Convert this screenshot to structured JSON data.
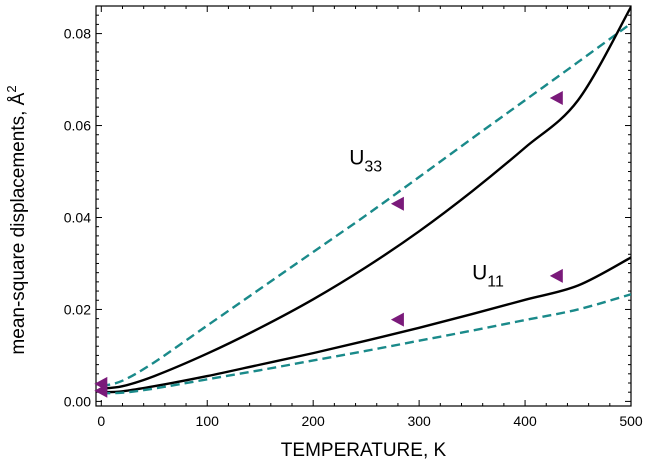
{
  "chart_data": {
    "type": "line",
    "title": "",
    "xlabel": "TEMPERATURE, K",
    "ylabel_text": "mean-square displacements, ",
    "ylabel_unit_base": "Å",
    "ylabel_unit_sup": "2",
    "xlim": [
      -5,
      500
    ],
    "ylim": [
      -0.001,
      0.086
    ],
    "xticks": [
      0,
      100,
      200,
      300,
      400,
      500
    ],
    "xtick_labels": [
      "0",
      "100",
      "200",
      "300",
      "400",
      "500"
    ],
    "yticks": [
      0.0,
      0.02,
      0.04,
      0.06,
      0.08
    ],
    "ytick_labels": [
      "0.00",
      "0.02",
      "0.04",
      "0.06",
      "0.08"
    ],
    "grid": false,
    "legend": "none",
    "series": [
      {
        "style": "dashed",
        "color": "#1a8a8a",
        "x": [
          0,
          20,
          50,
          100,
          150,
          200,
          250,
          300,
          350,
          400,
          450,
          500
        ],
        "y": [
          0.0033,
          0.0045,
          0.0085,
          0.0165,
          0.0245,
          0.0325,
          0.0405,
          0.0488,
          0.0572,
          0.0655,
          0.0738,
          0.0822
        ]
      },
      {
        "style": "solid",
        "color": "#000000",
        "x": [
          0,
          20,
          50,
          100,
          150,
          200,
          250,
          300,
          350,
          400,
          450,
          500
        ],
        "y": [
          0.0028,
          0.0033,
          0.0055,
          0.0104,
          0.016,
          0.0222,
          0.0292,
          0.037,
          0.0457,
          0.0552,
          0.0655,
          0.0858
        ]
      },
      {
        "style": "solid",
        "color": "#000000",
        "x": [
          0,
          20,
          50,
          100,
          150,
          200,
          250,
          300,
          350,
          400,
          450,
          500
        ],
        "y": [
          0.002,
          0.0022,
          0.0033,
          0.0055,
          0.008,
          0.0105,
          0.0132,
          0.016,
          0.019,
          0.0221,
          0.0252,
          0.0313
        ]
      },
      {
        "style": "dashed",
        "color": "#1a8a8a",
        "x": [
          0,
          20,
          50,
          100,
          150,
          200,
          250,
          300,
          350,
          400,
          450,
          500
        ],
        "y": [
          0.0018,
          0.0019,
          0.0028,
          0.0048,
          0.0068,
          0.0089,
          0.011,
          0.0132,
          0.0154,
          0.0177,
          0.02,
          0.0233
        ]
      }
    ],
    "markers": {
      "shape": "left-triangle",
      "color": "#7a1a7a",
      "points": [
        {
          "x": 0,
          "y": 0.0038
        },
        {
          "x": 0,
          "y": 0.0023
        },
        {
          "x": 280,
          "y": 0.043
        },
        {
          "x": 280,
          "y": 0.0178
        },
        {
          "x": 430,
          "y": 0.066
        },
        {
          "x": 430,
          "y": 0.0273
        }
      ]
    },
    "annotations": [
      {
        "base": "U",
        "sub": "33",
        "x": 234,
        "y": 0.0515
      },
      {
        "base": "U",
        "sub": "11",
        "x": 350,
        "y": 0.0265
      }
    ]
  }
}
